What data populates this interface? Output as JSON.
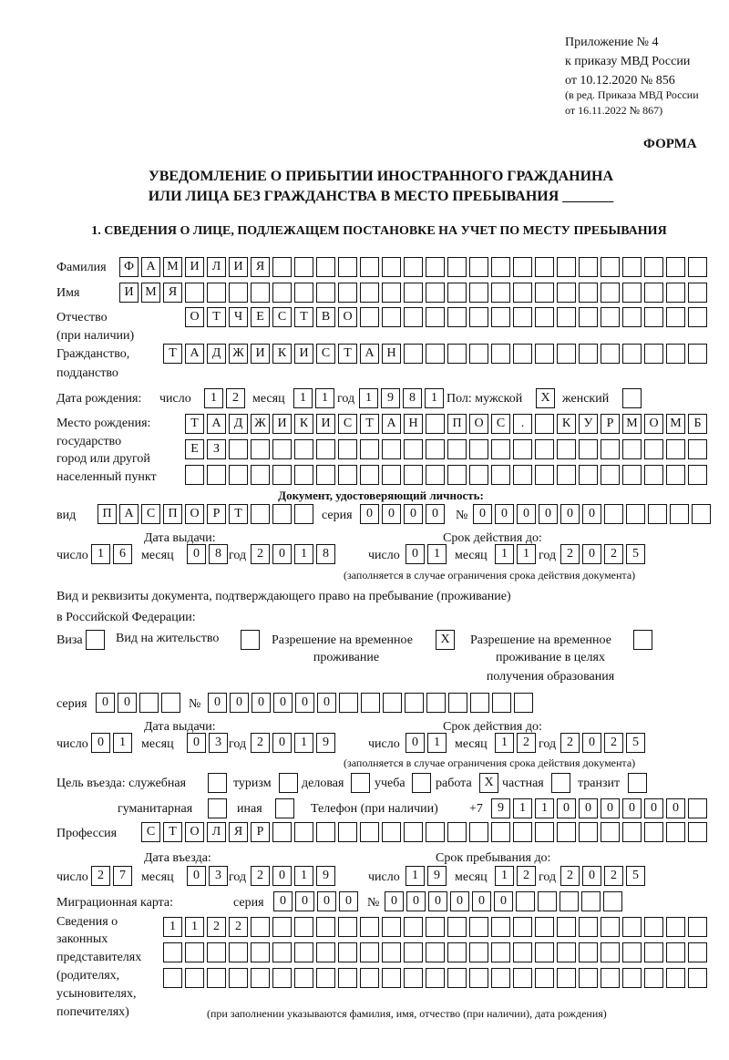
{
  "header": {
    "appendix": "Приложение № 4",
    "order": "к приказу МВД России",
    "order_date": "от 10.12.2020 № 856",
    "edition1": "(в ред. Приказа МВД России",
    "edition2": "от 16.11.2022 № 867)",
    "form_label": "ФОРМА",
    "title1": "УВЕДОМЛЕНИЕ О ПРИБЫТИИ ИНОСТРАННОГО ГРАЖДАНИНА",
    "title2": "ИЛИ ЛИЦА БЕЗ ГРАЖДАНСТВА В МЕСТО ПРЕБЫВАНИЯ _______",
    "section1": "1. СВЕДЕНИЯ О ЛИЦЕ, ПОДЛЕЖАЩЕМ ПОСТАНОВКЕ НА УЧЕТ ПО МЕСТУ ПРЕБЫВАНИЯ"
  },
  "labels": {
    "surname": "Фамилия",
    "name": "Имя",
    "patronymic": "Отчество",
    "patronymic_note": "(при наличии)",
    "citizenship": "Гражданство,",
    "citizenship2": "подданство",
    "birth_date": "Дата рождения:",
    "day": "число",
    "month": "месяц",
    "year": "год",
    "sex": "Пол: мужской",
    "female": "женский",
    "birth_place": "Место рождения:",
    "birth_place2": "государство",
    "birth_place3": "город или другой",
    "birth_place4": "населенный пункт",
    "id_doc": "Документ, удостоверяющий личность:",
    "kind": "вид",
    "series": "серия",
    "number": "№",
    "issue_date": "Дата выдачи:",
    "valid_until": "Срок действия до:",
    "validity_note": "(заполняется в случае ограничения срока действия документа)",
    "stay_doc1": "Вид и реквизиты документа, подтверждающего право на пребывание (проживание)",
    "stay_doc2": "в Российской Федерации:",
    "visa": "Виза",
    "residence": "Вид на жительство",
    "temp_res1": "Разрешение на временное",
    "temp_res2": "проживание",
    "temp_edu1": "Разрешение на временное",
    "temp_edu2": "проживание в целях",
    "temp_edu3": "получения образования",
    "purpose": "Цель въезда: служебная",
    "tourism": "туризм",
    "business": "деловая",
    "study": "учеба",
    "work": "работа",
    "private": "частная",
    "transit": "транзит",
    "humanitarian": "гуманитарная",
    "other": "иная",
    "phone": "Телефон (при наличии)",
    "phone_prefix": "+7",
    "profession": "Профессия",
    "entry_date": "Дата въезда:",
    "stay_until": "Срок пребывания до:",
    "migration_card": "Миграционная карта:",
    "reps1": "Сведения о",
    "reps2": "законных",
    "reps3": "представителях",
    "reps4": "(родителях,",
    "reps5": "усыновителях,",
    "reps6": "попечителях)",
    "reps_note": "(при заполнении указываются фамилия, имя, отчество (при наличии), дата рождения)"
  },
  "person": {
    "surname": "ФАМИЛИЯ",
    "name": "ИМЯ",
    "patronymic": "ОТЧЕСТВО",
    "citizenship": "ТАДЖИКИСТАН",
    "birth_day": "12",
    "birth_month": "11",
    "birth_year": "1981",
    "sex_male": "X",
    "sex_female": "",
    "birth_place1": "ТАДЖИКИСТАН ПОС. КУРМОМБ",
    "birth_place2": "ЕЗ",
    "birth_place3": ""
  },
  "id_document": {
    "kind": "ПАСПОРТ",
    "series": "0000",
    "number": "000000",
    "issue_day": "16",
    "issue_month": "08",
    "issue_year": "2018",
    "valid_day": "01",
    "valid_month": "11",
    "valid_year": "2025"
  },
  "stay_document": {
    "visa": "",
    "residence": "",
    "temp_residence": "X",
    "temp_residence_edu": "",
    "series": "00",
    "number": "000000",
    "issue_day": "01",
    "issue_month": "03",
    "issue_year": "2019",
    "valid_day": "01",
    "valid_month": "12",
    "valid_year": "2025"
  },
  "purpose": {
    "official": "",
    "tourism": "",
    "business": "",
    "study": "",
    "work": "X",
    "private": "",
    "transit": "",
    "humanitarian": "",
    "other": ""
  },
  "phone": "911000000",
  "profession": "СТОЛЯР",
  "entry": {
    "day": "27",
    "month": "03",
    "year": "2019",
    "until_day": "19",
    "until_month": "12",
    "until_year": "2025"
  },
  "migration_card": {
    "series": "0000",
    "number": "000000"
  },
  "representatives": {
    "row1": "1122",
    "row2": "",
    "row3": ""
  }
}
